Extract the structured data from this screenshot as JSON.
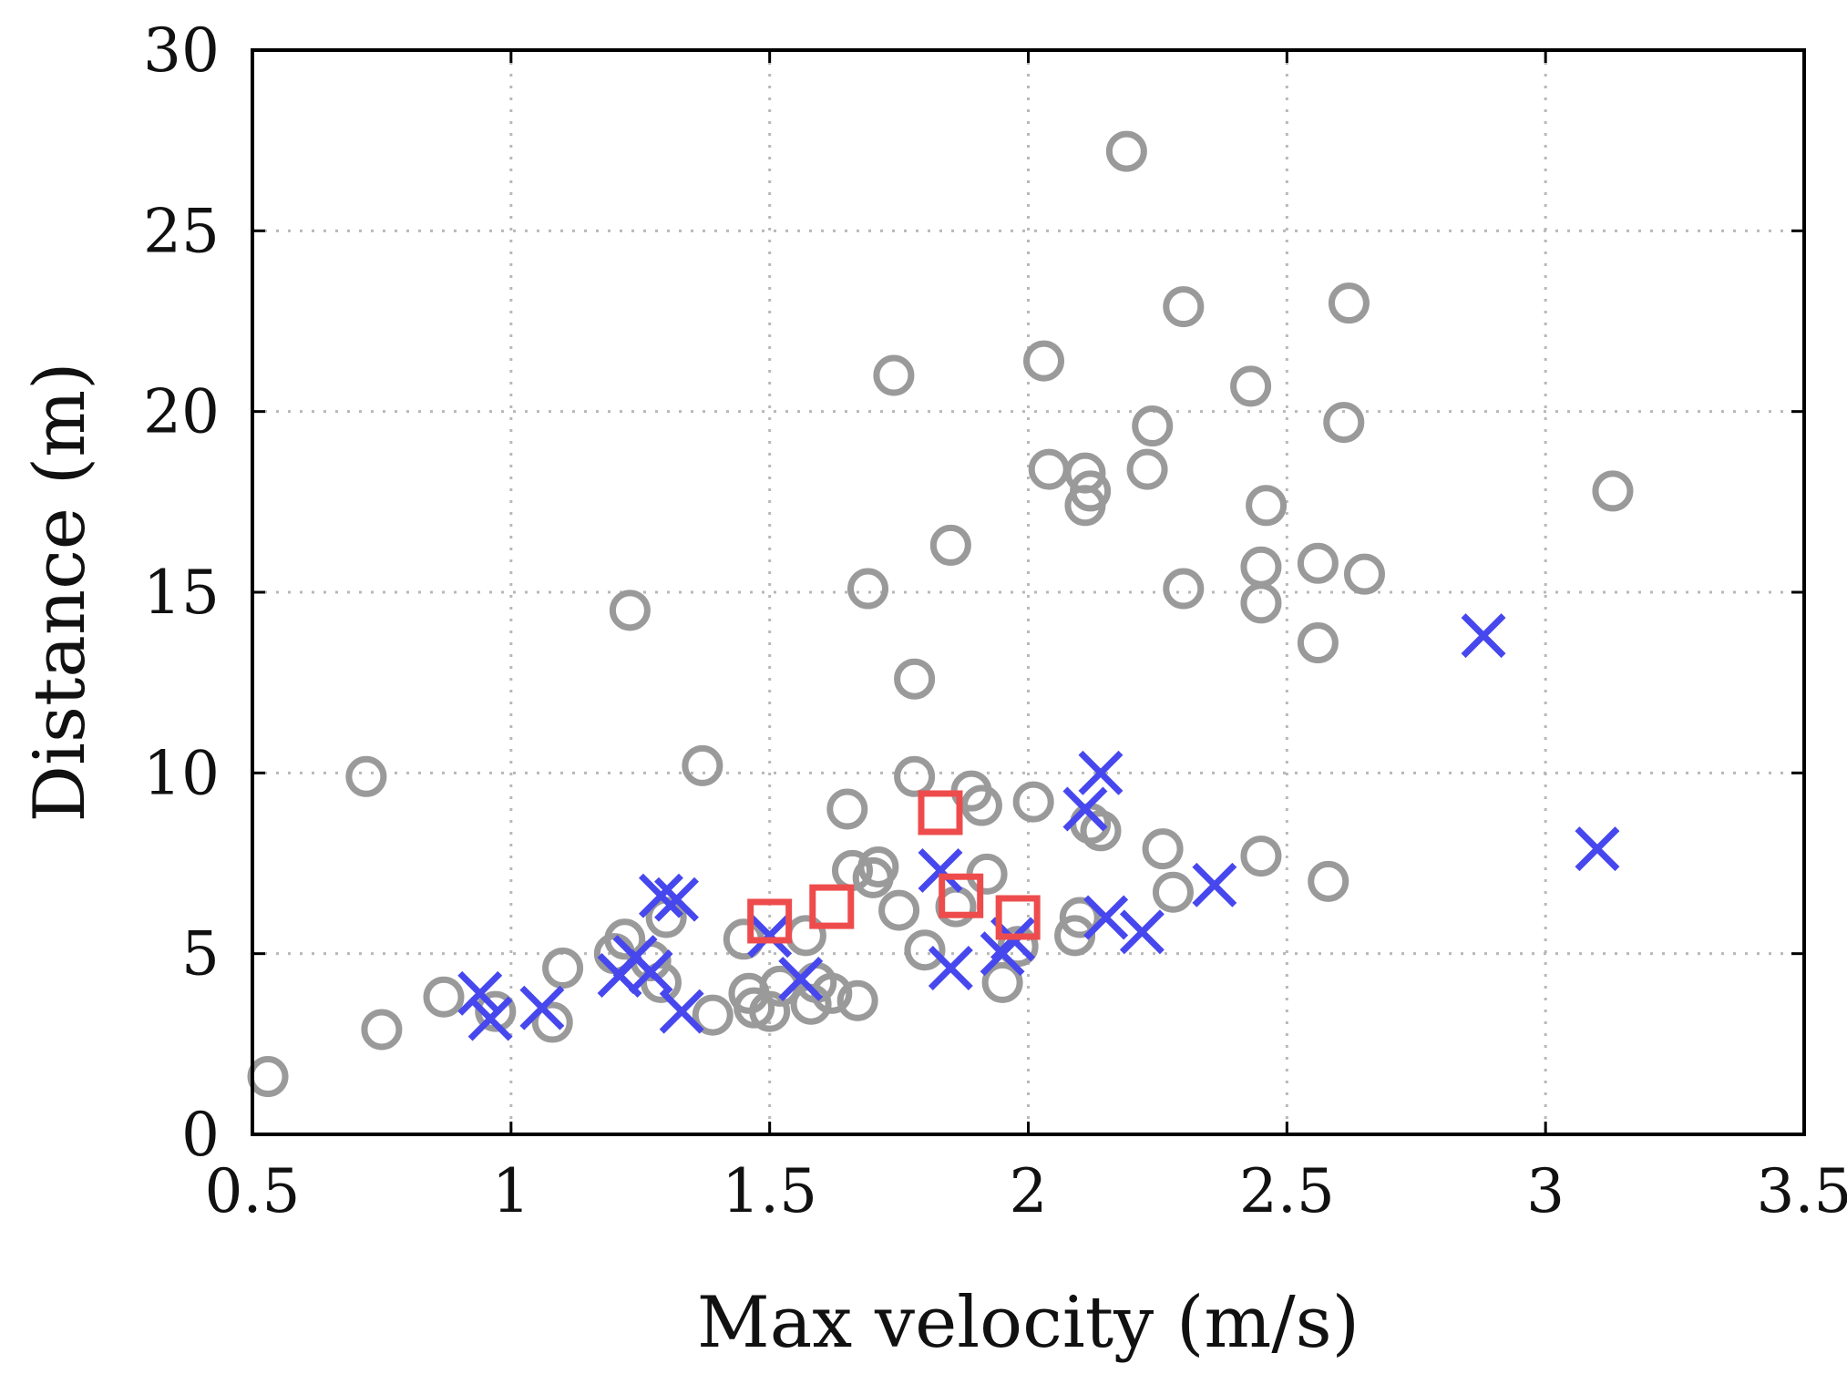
{
  "chart_data": {
    "type": "scatter",
    "title": "",
    "xlabel": "Max velocity (m/s)",
    "ylabel": "Distance (m)",
    "xlim": [
      0.5,
      3.5
    ],
    "ylim": [
      0,
      30
    ],
    "x_ticks": [
      0.5,
      1,
      1.5,
      2,
      2.5,
      3,
      3.5
    ],
    "x_tick_labels": [
      "0.5",
      "1",
      "1.5",
      "2",
      "2.5",
      "3",
      "3.5"
    ],
    "y_ticks": [
      0,
      5,
      10,
      15,
      20,
      25,
      30
    ],
    "y_tick_labels": [
      "0",
      "5",
      "10",
      "15",
      "20",
      "25",
      "30"
    ],
    "grid": true,
    "legend": "none",
    "series": [
      {
        "name": "circles",
        "marker": "circle",
        "color": "#9a9a9a",
        "points": [
          [
            0.53,
            1.6
          ],
          [
            0.72,
            9.9
          ],
          [
            0.75,
            2.9
          ],
          [
            0.87,
            3.8
          ],
          [
            0.97,
            3.4
          ],
          [
            1.08,
            3.1
          ],
          [
            1.1,
            4.6
          ],
          [
            1.2,
            5.0
          ],
          [
            1.22,
            5.4
          ],
          [
            1.23,
            14.5
          ],
          [
            1.27,
            4.8
          ],
          [
            1.29,
            4.2
          ],
          [
            1.3,
            6.0
          ],
          [
            1.37,
            10.2
          ],
          [
            1.39,
            3.3
          ],
          [
            1.45,
            5.4
          ],
          [
            1.46,
            3.9
          ],
          [
            1.47,
            3.5
          ],
          [
            1.5,
            3.4
          ],
          [
            1.52,
            4.1
          ],
          [
            1.57,
            5.5
          ],
          [
            1.58,
            3.6
          ],
          [
            1.59,
            4.2
          ],
          [
            1.62,
            3.9
          ],
          [
            1.65,
            9.0
          ],
          [
            1.66,
            7.3
          ],
          [
            1.67,
            3.7
          ],
          [
            1.69,
            15.1
          ],
          [
            1.7,
            7.1
          ],
          [
            1.71,
            7.4
          ],
          [
            1.74,
            21.0
          ],
          [
            1.75,
            6.2
          ],
          [
            1.78,
            12.6
          ],
          [
            1.78,
            9.9
          ],
          [
            1.8,
            5.1
          ],
          [
            1.85,
            16.3
          ],
          [
            1.86,
            6.3
          ],
          [
            1.89,
            9.5
          ],
          [
            1.91,
            9.1
          ],
          [
            1.92,
            7.2
          ],
          [
            1.95,
            4.2
          ],
          [
            1.98,
            5.2
          ],
          [
            2.01,
            9.2
          ],
          [
            2.03,
            21.4
          ],
          [
            2.04,
            18.4
          ],
          [
            2.09,
            5.5
          ],
          [
            2.1,
            6.0
          ],
          [
            2.11,
            17.4
          ],
          [
            2.11,
            18.3
          ],
          [
            2.12,
            17.8
          ],
          [
            2.12,
            8.6
          ],
          [
            2.14,
            8.4
          ],
          [
            2.19,
            27.2
          ],
          [
            2.23,
            18.4
          ],
          [
            2.24,
            19.6
          ],
          [
            2.26,
            7.9
          ],
          [
            2.28,
            6.7
          ],
          [
            2.3,
            22.9
          ],
          [
            2.3,
            15.1
          ],
          [
            2.43,
            20.7
          ],
          [
            2.45,
            15.7
          ],
          [
            2.45,
            14.7
          ],
          [
            2.45,
            7.7
          ],
          [
            2.46,
            17.4
          ],
          [
            2.56,
            15.8
          ],
          [
            2.56,
            13.6
          ],
          [
            2.58,
            7.0
          ],
          [
            2.61,
            19.7
          ],
          [
            2.62,
            23.0
          ],
          [
            2.65,
            15.5
          ],
          [
            3.13,
            17.8
          ]
        ]
      },
      {
        "name": "crosses",
        "marker": "x",
        "color": "#4747ee",
        "points": [
          [
            0.94,
            3.9
          ],
          [
            0.96,
            3.2
          ],
          [
            1.06,
            3.5
          ],
          [
            1.21,
            4.4
          ],
          [
            1.24,
            4.9
          ],
          [
            1.27,
            4.5
          ],
          [
            1.29,
            6.6
          ],
          [
            1.32,
            6.5
          ],
          [
            1.33,
            3.4
          ],
          [
            1.5,
            5.5
          ],
          [
            1.56,
            4.3
          ],
          [
            1.83,
            7.3
          ],
          [
            1.85,
            4.6
          ],
          [
            1.95,
            5.0
          ],
          [
            1.97,
            5.4
          ],
          [
            2.11,
            9.0
          ],
          [
            2.14,
            10.0
          ],
          [
            2.15,
            6.0
          ],
          [
            2.22,
            5.6
          ],
          [
            2.36,
            6.9
          ],
          [
            2.88,
            13.8
          ],
          [
            3.1,
            7.9
          ]
        ]
      },
      {
        "name": "squares",
        "marker": "square",
        "color": "#ee4c4c",
        "points": [
          [
            1.5,
            5.9
          ],
          [
            1.62,
            6.3
          ],
          [
            1.83,
            8.9
          ],
          [
            1.87,
            6.6
          ],
          [
            1.98,
            6.0
          ]
        ]
      }
    ]
  }
}
